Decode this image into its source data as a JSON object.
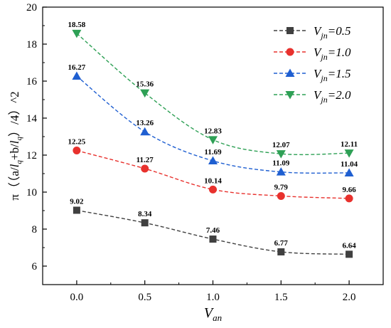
{
  "chart_data": {
    "type": "line",
    "x": [
      0.0,
      0.5,
      1.0,
      1.5,
      2.0
    ],
    "xlabel": {
      "main": "V",
      "sub": "an"
    },
    "ylabel": "π（(a/l_q+b/l_q)/4）^2",
    "ylabel_parts": [
      "π（（a/",
      "l",
      "q",
      "+b/",
      "l",
      "q",
      "）/4）^2"
    ],
    "xlim": [
      -0.25,
      2.25
    ],
    "ylim": [
      5,
      20
    ],
    "xticks": [
      "0.0",
      "0.5",
      "1.0",
      "1.5",
      "2.0"
    ],
    "yticks": [
      "6",
      "8",
      "10",
      "12",
      "14",
      "16",
      "18",
      "20"
    ],
    "grid": false,
    "legend_position": "top-right",
    "series": [
      {
        "name": "V_jn=0.5",
        "legend_main": "V",
        "legend_sub": "jn",
        "legend_value": "=0.5",
        "color": "#404040",
        "marker": "square",
        "values": [
          9.02,
          8.34,
          7.46,
          6.77,
          6.64
        ],
        "labels": [
          "9.02",
          "8.34",
          "7.46",
          "6.77",
          "6.64"
        ]
      },
      {
        "name": "V_jn=1.0",
        "legend_main": "V",
        "legend_sub": "jn",
        "legend_value": "=1.0",
        "color": "#e8312d",
        "marker": "circle",
        "values": [
          12.25,
          11.27,
          10.14,
          9.79,
          9.66
        ],
        "labels": [
          "12.25",
          "11.27",
          "10.14",
          "9.79",
          "9.66"
        ]
      },
      {
        "name": "V_jn=1.5",
        "legend_main": "V",
        "legend_sub": "jn",
        "legend_value": "=1.5",
        "color": "#1f5fd1",
        "marker": "triangle-up",
        "values": [
          16.27,
          13.26,
          11.69,
          11.09,
          11.04
        ],
        "labels": [
          "16.27",
          "13.26",
          "11.69",
          "11.09",
          "11.04"
        ]
      },
      {
        "name": "V_jn=2.0",
        "legend_main": "V",
        "legend_sub": "jn",
        "legend_value": "=2.0",
        "color": "#2ea055",
        "marker": "triangle-down",
        "values": [
          18.58,
          15.36,
          12.83,
          12.07,
          12.11
        ],
        "labels": [
          "18.58",
          "15.36",
          "12.83",
          "12.07",
          "12.11"
        ]
      }
    ]
  }
}
